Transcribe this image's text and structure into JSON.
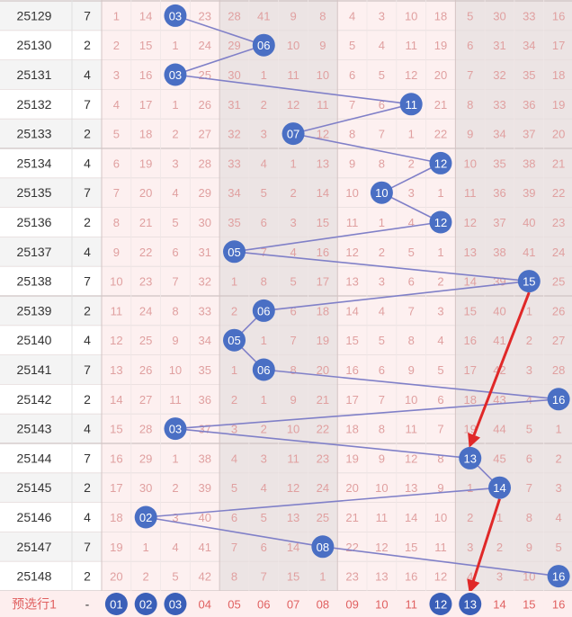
{
  "chart_data": {
    "type": "table",
    "columns": [
      "01",
      "02",
      "03",
      "04",
      "05",
      "06",
      "07",
      "08",
      "09",
      "10",
      "11",
      "12",
      "13",
      "14",
      "15",
      "16"
    ],
    "rows": [
      {
        "issue": "25129",
        "tag": "7",
        "cells": [
          1,
          14,
          3,
          23,
          28,
          41,
          9,
          8,
          4,
          3,
          10,
          18,
          5,
          30,
          33,
          16
        ],
        "hit": 3
      },
      {
        "issue": "25130",
        "tag": "2",
        "cells": [
          2,
          15,
          1,
          24,
          29,
          6,
          10,
          9,
          5,
          4,
          11,
          19,
          6,
          31,
          34,
          17
        ],
        "hit": 6
      },
      {
        "issue": "25131",
        "tag": "4",
        "cells": [
          3,
          16,
          3,
          25,
          30,
          1,
          11,
          10,
          6,
          5,
          12,
          20,
          7,
          32,
          35,
          18
        ],
        "hit": 3
      },
      {
        "issue": "25132",
        "tag": "7",
        "cells": [
          4,
          17,
          1,
          26,
          31,
          2,
          12,
          11,
          7,
          6,
          11,
          21,
          8,
          33,
          36,
          19
        ],
        "hit": 11
      },
      {
        "issue": "25133",
        "tag": "2",
        "cells": [
          5,
          18,
          2,
          27,
          32,
          3,
          7,
          12,
          8,
          7,
          1,
          22,
          9,
          34,
          37,
          20
        ],
        "hit": 7
      },
      {
        "issue": "25134",
        "tag": "4",
        "cells": [
          6,
          19,
          3,
          28,
          33,
          4,
          1,
          13,
          9,
          8,
          2,
          12,
          10,
          35,
          38,
          21
        ],
        "hit": 12
      },
      {
        "issue": "25135",
        "tag": "7",
        "cells": [
          7,
          20,
          4,
          29,
          34,
          5,
          2,
          14,
          10,
          10,
          3,
          1,
          11,
          36,
          39,
          22
        ],
        "hit": 10
      },
      {
        "issue": "25136",
        "tag": "2",
        "cells": [
          8,
          21,
          5,
          30,
          35,
          6,
          3,
          15,
          11,
          1,
          4,
          12,
          12,
          37,
          40,
          23
        ],
        "hit": 12
      },
      {
        "issue": "25137",
        "tag": "4",
        "cells": [
          9,
          22,
          6,
          31,
          5,
          7,
          4,
          16,
          12,
          2,
          5,
          1,
          13,
          38,
          41,
          24
        ],
        "hit": 5
      },
      {
        "issue": "25138",
        "tag": "7",
        "cells": [
          10,
          23,
          7,
          32,
          1,
          8,
          5,
          17,
          13,
          3,
          6,
          2,
          14,
          39,
          15,
          25
        ],
        "hit": 15
      },
      {
        "issue": "25139",
        "tag": "2",
        "cells": [
          11,
          24,
          8,
          33,
          2,
          6,
          6,
          18,
          14,
          4,
          7,
          3,
          15,
          40,
          1,
          26
        ],
        "hit": 6
      },
      {
        "issue": "25140",
        "tag": "4",
        "cells": [
          12,
          25,
          9,
          34,
          5,
          1,
          7,
          19,
          15,
          5,
          8,
          4,
          16,
          41,
          2,
          27
        ],
        "hit": 5
      },
      {
        "issue": "25141",
        "tag": "7",
        "cells": [
          13,
          26,
          10,
          35,
          1,
          6,
          8,
          20,
          16,
          6,
          9,
          5,
          17,
          42,
          3,
          28
        ],
        "hit": 6
      },
      {
        "issue": "25142",
        "tag": "2",
        "cells": [
          14,
          27,
          11,
          36,
          2,
          1,
          9,
          21,
          17,
          7,
          10,
          6,
          18,
          43,
          4,
          16
        ],
        "hit": 16
      },
      {
        "issue": "25143",
        "tag": "4",
        "cells": [
          15,
          28,
          3,
          37,
          3,
          2,
          10,
          22,
          18,
          8,
          11,
          7,
          19,
          44,
          5,
          1
        ],
        "hit": 3
      },
      {
        "issue": "25144",
        "tag": "7",
        "cells": [
          16,
          29,
          1,
          38,
          4,
          3,
          11,
          23,
          19,
          9,
          12,
          8,
          13,
          45,
          6,
          2
        ],
        "hit": 13
      },
      {
        "issue": "25145",
        "tag": "2",
        "cells": [
          17,
          30,
          2,
          39,
          5,
          4,
          12,
          24,
          20,
          10,
          13,
          9,
          1,
          14,
          7,
          3
        ],
        "hit": 14
      },
      {
        "issue": "25146",
        "tag": "4",
        "cells": [
          18,
          2,
          3,
          40,
          6,
          5,
          13,
          25,
          21,
          11,
          14,
          10,
          2,
          1,
          8,
          4
        ],
        "hit": 2
      },
      {
        "issue": "25147",
        "tag": "7",
        "cells": [
          19,
          1,
          4,
          41,
          7,
          6,
          14,
          8,
          22,
          12,
          15,
          11,
          3,
          2,
          9,
          5
        ],
        "hit": 8
      },
      {
        "issue": "25148",
        "tag": "2",
        "cells": [
          20,
          2,
          5,
          42,
          8,
          7,
          15,
          1,
          23,
          13,
          16,
          12,
          4,
          3,
          10,
          16
        ],
        "hit": 16
      }
    ],
    "footer": {
      "label": "预选行1",
      "tag": "-",
      "selected": [
        "01",
        "02",
        "03",
        "12",
        "13"
      ]
    },
    "arrow_targets": [
      {
        "from_issue": "25138",
        "from_col": "15",
        "to_issue": "25144",
        "to_col": "13"
      },
      {
        "from_issue": "25145",
        "from_col": "14",
        "to_issue": "预选行1",
        "to_col": "13"
      }
    ],
    "colors": {
      "hit_ball": "#4a6fc4",
      "trend_line": "#8080c8",
      "arrow": "#e02828",
      "miss_text": "#e0a0a0",
      "issue_text": "#333333",
      "footer_text": "#e06060",
      "band_pink": "#fdf0f0",
      "band_gray": "#ece4e4",
      "grid": "#e6dcdc"
    }
  }
}
